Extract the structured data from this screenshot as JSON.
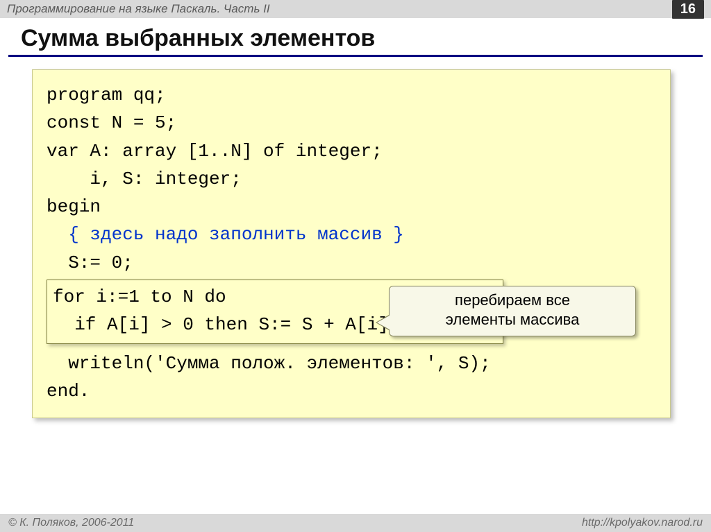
{
  "header": {
    "course_title": "Программирование на языке Паскаль. Часть II",
    "page_number": "16"
  },
  "slide": {
    "title": "Сумма выбранных элементов"
  },
  "code": {
    "l1": "program qq;",
    "l2": "const N = 5;",
    "l3": "var A: array [1..N] of integer;",
    "l4": "    i, S: integer;",
    "l5": "begin",
    "comment": "  { здесь надо заполнить массив }",
    "l7": "  S:= 0;",
    "hl1": "for i:=1 to N do",
    "hl2": "  if A[i] > 0 then S:= S + A[i];",
    "l10": "  writeln('Сумма полож. элементов: ', S);",
    "l11": "end."
  },
  "callout": {
    "line1": "перебираем все",
    "line2": "элементы массива"
  },
  "footer": {
    "copyright": "© К. Поляков, 2006-2011",
    "url": "http://kpolyakov.narod.ru"
  },
  "colors": {
    "code_box_bg": "#ffffc8",
    "comment_color": "#0033cc",
    "header_bg": "#d9d9d9",
    "title_underline": "#000080"
  }
}
